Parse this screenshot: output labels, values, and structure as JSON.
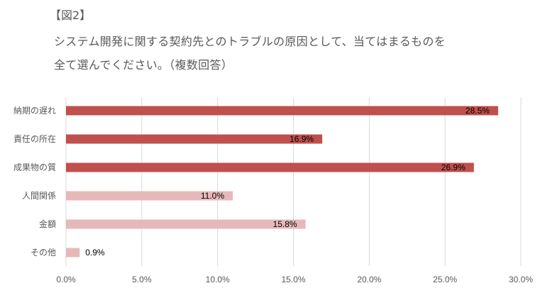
{
  "figure_label": "【図2】",
  "title_lines": [
    "システム開発に関する契約先とのトラブルの原因として、当てはまるものを",
    "全て選んでください。（複数回答）"
  ],
  "chart_data": {
    "type": "bar",
    "orientation": "horizontal",
    "title": "システム開発に関する契約先とのトラブルの原因として、当てはまるものを全て選んでください。（複数回答）",
    "categories": [
      "納期の遅れ",
      "責任の所在",
      "成果物の質",
      "人間関係",
      "金額",
      "その他"
    ],
    "values": [
      28.5,
      16.9,
      26.9,
      11.0,
      15.8,
      0.9
    ],
    "value_labels": [
      "28.5%",
      "16.9%",
      "26.9%",
      "11.0%",
      "15.8%",
      "0.9%"
    ],
    "bar_colors": [
      "#C0504D",
      "#C0504D",
      "#C0504D",
      "#E6B9B8",
      "#E6B9B8",
      "#E6B9B8"
    ],
    "xlim": [
      0,
      30
    ],
    "x_ticks": [
      0,
      5,
      10,
      15,
      20,
      25,
      30
    ],
    "x_tick_labels": [
      "0.0%",
      "5.0%",
      "10.0%",
      "15.0%",
      "20.0%",
      "25.0%",
      "30.0%"
    ],
    "grid": "vertical",
    "legend": "none",
    "xlabel": "",
    "ylabel": ""
  }
}
